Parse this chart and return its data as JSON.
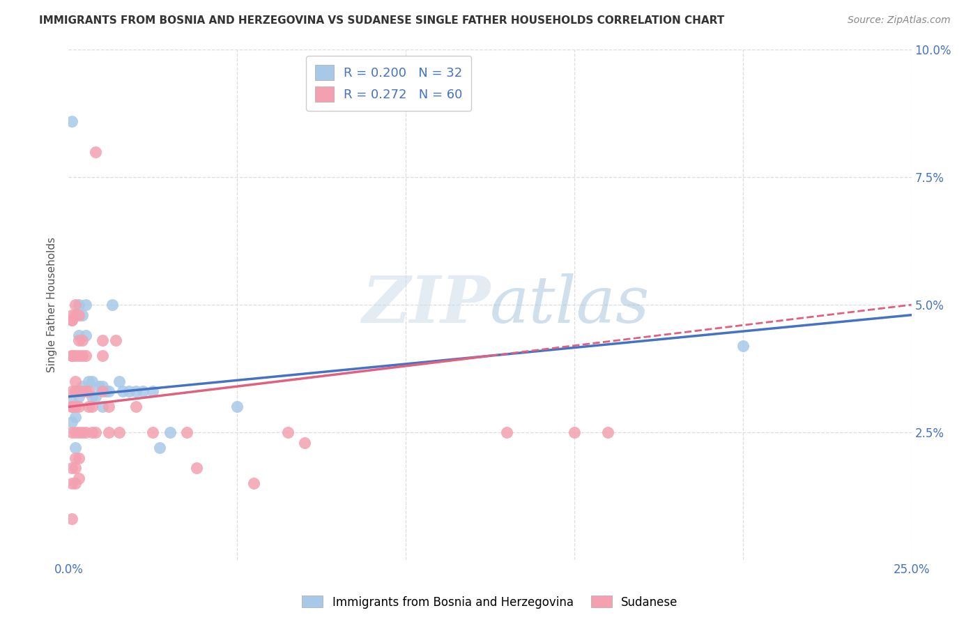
{
  "title": "IMMIGRANTS FROM BOSNIA AND HERZEGOVINA VS SUDANESE SINGLE FATHER HOUSEHOLDS CORRELATION CHART",
  "source": "Source: ZipAtlas.com",
  "ylabel": "Single Father Households",
  "y_ticks": [
    0.0,
    0.025,
    0.05,
    0.075,
    0.1
  ],
  "y_tick_labels_right": [
    "",
    "2.5%",
    "5.0%",
    "7.5%",
    "10.0%"
  ],
  "x_ticks": [
    0.0,
    0.05,
    0.1,
    0.15,
    0.2,
    0.25
  ],
  "x_tick_labels": [
    "0.0%",
    "",
    "",
    "",
    "",
    "25.0%"
  ],
  "legend1_r": "0.200",
  "legend1_n": "32",
  "legend2_r": "0.272",
  "legend2_n": "60",
  "color_blue": "#A8C8E8",
  "color_pink": "#F4A0B0",
  "line_blue": "#4472C4",
  "line_pink": "#E06080",
  "watermark_zip": "ZIP",
  "watermark_atlas": "atlas",
  "bottom_label1": "Immigrants from Bosnia and Herzegovina",
  "bottom_label2": "Sudanese",
  "blue_points": [
    [
      0.001,
      0.086
    ],
    [
      0.001,
      0.031
    ],
    [
      0.001,
      0.027
    ],
    [
      0.002,
      0.028
    ],
    [
      0.002,
      0.022
    ],
    [
      0.003,
      0.05
    ],
    [
      0.003,
      0.044
    ],
    [
      0.003,
      0.032
    ],
    [
      0.004,
      0.048
    ],
    [
      0.004,
      0.034
    ],
    [
      0.005,
      0.05
    ],
    [
      0.005,
      0.044
    ],
    [
      0.006,
      0.035
    ],
    [
      0.007,
      0.035
    ],
    [
      0.007,
      0.032
    ],
    [
      0.008,
      0.032
    ],
    [
      0.009,
      0.034
    ],
    [
      0.01,
      0.034
    ],
    [
      0.01,
      0.03
    ],
    [
      0.011,
      0.033
    ],
    [
      0.012,
      0.033
    ],
    [
      0.013,
      0.05
    ],
    [
      0.015,
      0.035
    ],
    [
      0.016,
      0.033
    ],
    [
      0.018,
      0.033
    ],
    [
      0.02,
      0.033
    ],
    [
      0.022,
      0.033
    ],
    [
      0.025,
      0.033
    ],
    [
      0.027,
      0.022
    ],
    [
      0.03,
      0.025
    ],
    [
      0.2,
      0.042
    ],
    [
      0.05,
      0.03
    ]
  ],
  "pink_points": [
    [
      0.001,
      0.048
    ],
    [
      0.001,
      0.047
    ],
    [
      0.001,
      0.047
    ],
    [
      0.001,
      0.04
    ],
    [
      0.001,
      0.04
    ],
    [
      0.001,
      0.033
    ],
    [
      0.001,
      0.03
    ],
    [
      0.001,
      0.03
    ],
    [
      0.001,
      0.025
    ],
    [
      0.001,
      0.018
    ],
    [
      0.001,
      0.015
    ],
    [
      0.001,
      0.008
    ],
    [
      0.002,
      0.05
    ],
    [
      0.002,
      0.048
    ],
    [
      0.002,
      0.04
    ],
    [
      0.002,
      0.035
    ],
    [
      0.002,
      0.033
    ],
    [
      0.002,
      0.03
    ],
    [
      0.002,
      0.025
    ],
    [
      0.002,
      0.02
    ],
    [
      0.002,
      0.018
    ],
    [
      0.002,
      0.015
    ],
    [
      0.003,
      0.048
    ],
    [
      0.003,
      0.043
    ],
    [
      0.003,
      0.04
    ],
    [
      0.003,
      0.033
    ],
    [
      0.003,
      0.03
    ],
    [
      0.003,
      0.025
    ],
    [
      0.003,
      0.02
    ],
    [
      0.003,
      0.016
    ],
    [
      0.004,
      0.043
    ],
    [
      0.004,
      0.04
    ],
    [
      0.004,
      0.033
    ],
    [
      0.004,
      0.025
    ],
    [
      0.005,
      0.04
    ],
    [
      0.005,
      0.033
    ],
    [
      0.005,
      0.025
    ],
    [
      0.006,
      0.033
    ],
    [
      0.006,
      0.03
    ],
    [
      0.007,
      0.03
    ],
    [
      0.007,
      0.025
    ],
    [
      0.008,
      0.08
    ],
    [
      0.008,
      0.025
    ],
    [
      0.01,
      0.043
    ],
    [
      0.01,
      0.04
    ],
    [
      0.01,
      0.033
    ],
    [
      0.012,
      0.03
    ],
    [
      0.012,
      0.025
    ],
    [
      0.014,
      0.043
    ],
    [
      0.015,
      0.025
    ],
    [
      0.02,
      0.03
    ],
    [
      0.025,
      0.025
    ],
    [
      0.035,
      0.025
    ],
    [
      0.038,
      0.018
    ],
    [
      0.055,
      0.015
    ],
    [
      0.065,
      0.025
    ],
    [
      0.07,
      0.023
    ],
    [
      0.13,
      0.025
    ],
    [
      0.15,
      0.025
    ],
    [
      0.16,
      0.025
    ]
  ]
}
